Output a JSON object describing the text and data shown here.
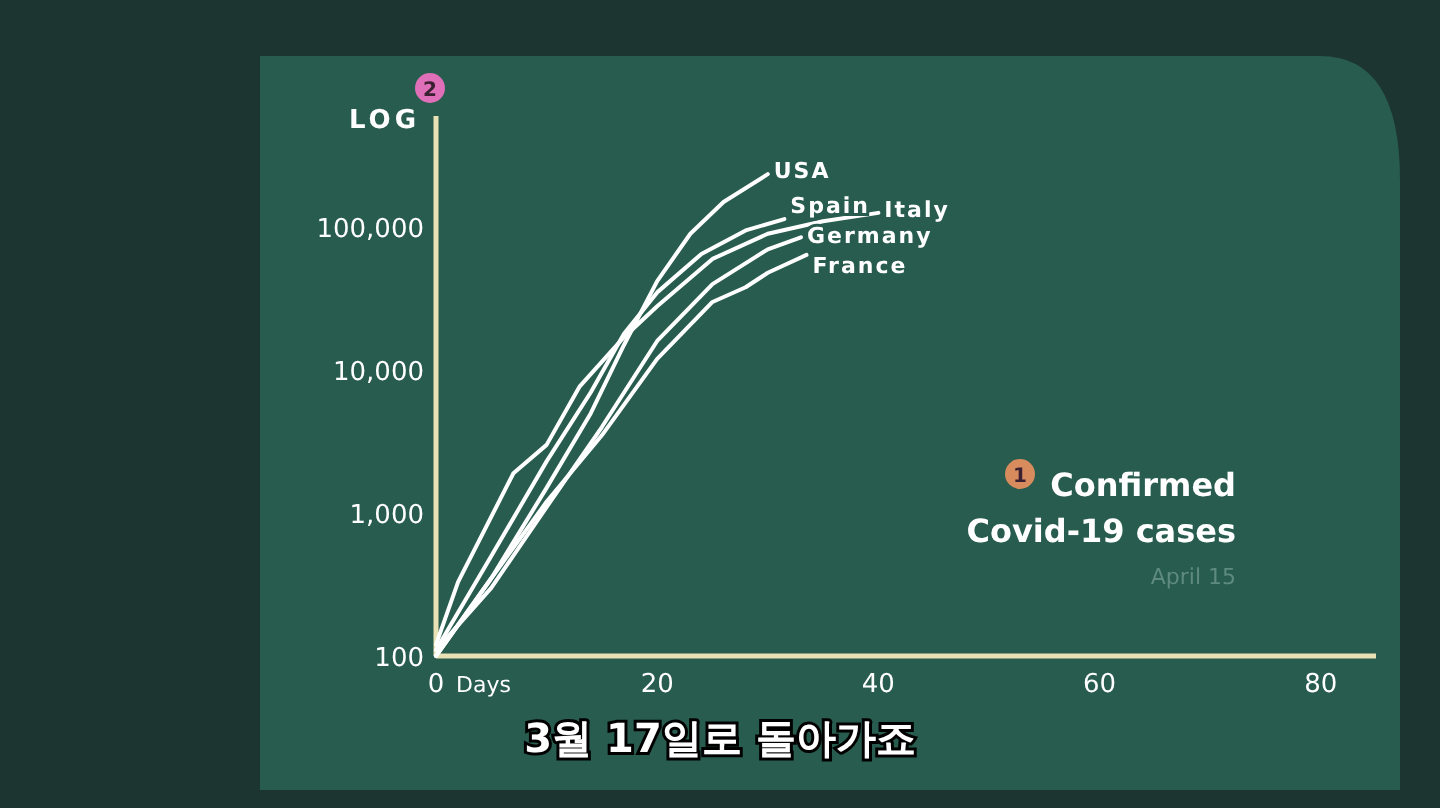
{
  "chart_data": {
    "type": "line",
    "title": "Confirmed Covid-19 cases",
    "xlabel": "Days",
    "ylabel": "LOG",
    "log": "y",
    "xlim": [
      0,
      85
    ],
    "ylim": [
      100,
      600000
    ],
    "xticks": [
      0,
      20,
      40,
      60,
      80
    ],
    "yticks": [
      100,
      {
        "value": 1000,
        "label": "1,000"
      },
      {
        "value": 10000,
        "label": "10,000"
      },
      {
        "value": 100000,
        "label": "100,000"
      }
    ],
    "line_style": "solid",
    "series": [
      {
        "name": "USA",
        "color": "#ffffff",
        "x": [
          0,
          5,
          10,
          14,
          17,
          20,
          23,
          26,
          30
        ],
        "values": [
          100,
          350,
          1500,
          5000,
          15000,
          42000,
          90000,
          150000,
          235000
        ]
      },
      {
        "name": "Spain",
        "color": "#ffffff",
        "x": [
          0,
          5,
          10,
          14,
          17,
          20,
          24,
          28,
          31.5
        ],
        "values": [
          110,
          500,
          2300,
          7000,
          18000,
          35000,
          65000,
          95000,
          114000
        ]
      },
      {
        "name": "Italy",
        "color": "#ffffff",
        "x": [
          0,
          2,
          7,
          10,
          13,
          17,
          20,
          25,
          30,
          35,
          40
        ],
        "values": [
          120,
          330,
          1900,
          3000,
          7700,
          17000,
          28000,
          60000,
          90000,
          110000,
          126000
        ]
      },
      {
        "name": "Germany",
        "color": "#ffffff",
        "x": [
          0,
          5,
          10,
          15,
          20,
          25,
          30,
          33
        ],
        "values": [
          110,
          300,
          1100,
          4000,
          16000,
          40000,
          70000,
          85000
        ]
      },
      {
        "name": "France",
        "color": "#ffffff",
        "x": [
          0,
          5,
          10,
          15,
          20,
          25,
          28,
          30,
          33.5
        ],
        "values": [
          100,
          350,
          1200,
          3500,
          12000,
          30000,
          38000,
          48000,
          64000
        ]
      }
    ],
    "annotations": [
      "1",
      "2",
      "April 15",
      "3월 17일로 돌아가죠"
    ]
  }
}
